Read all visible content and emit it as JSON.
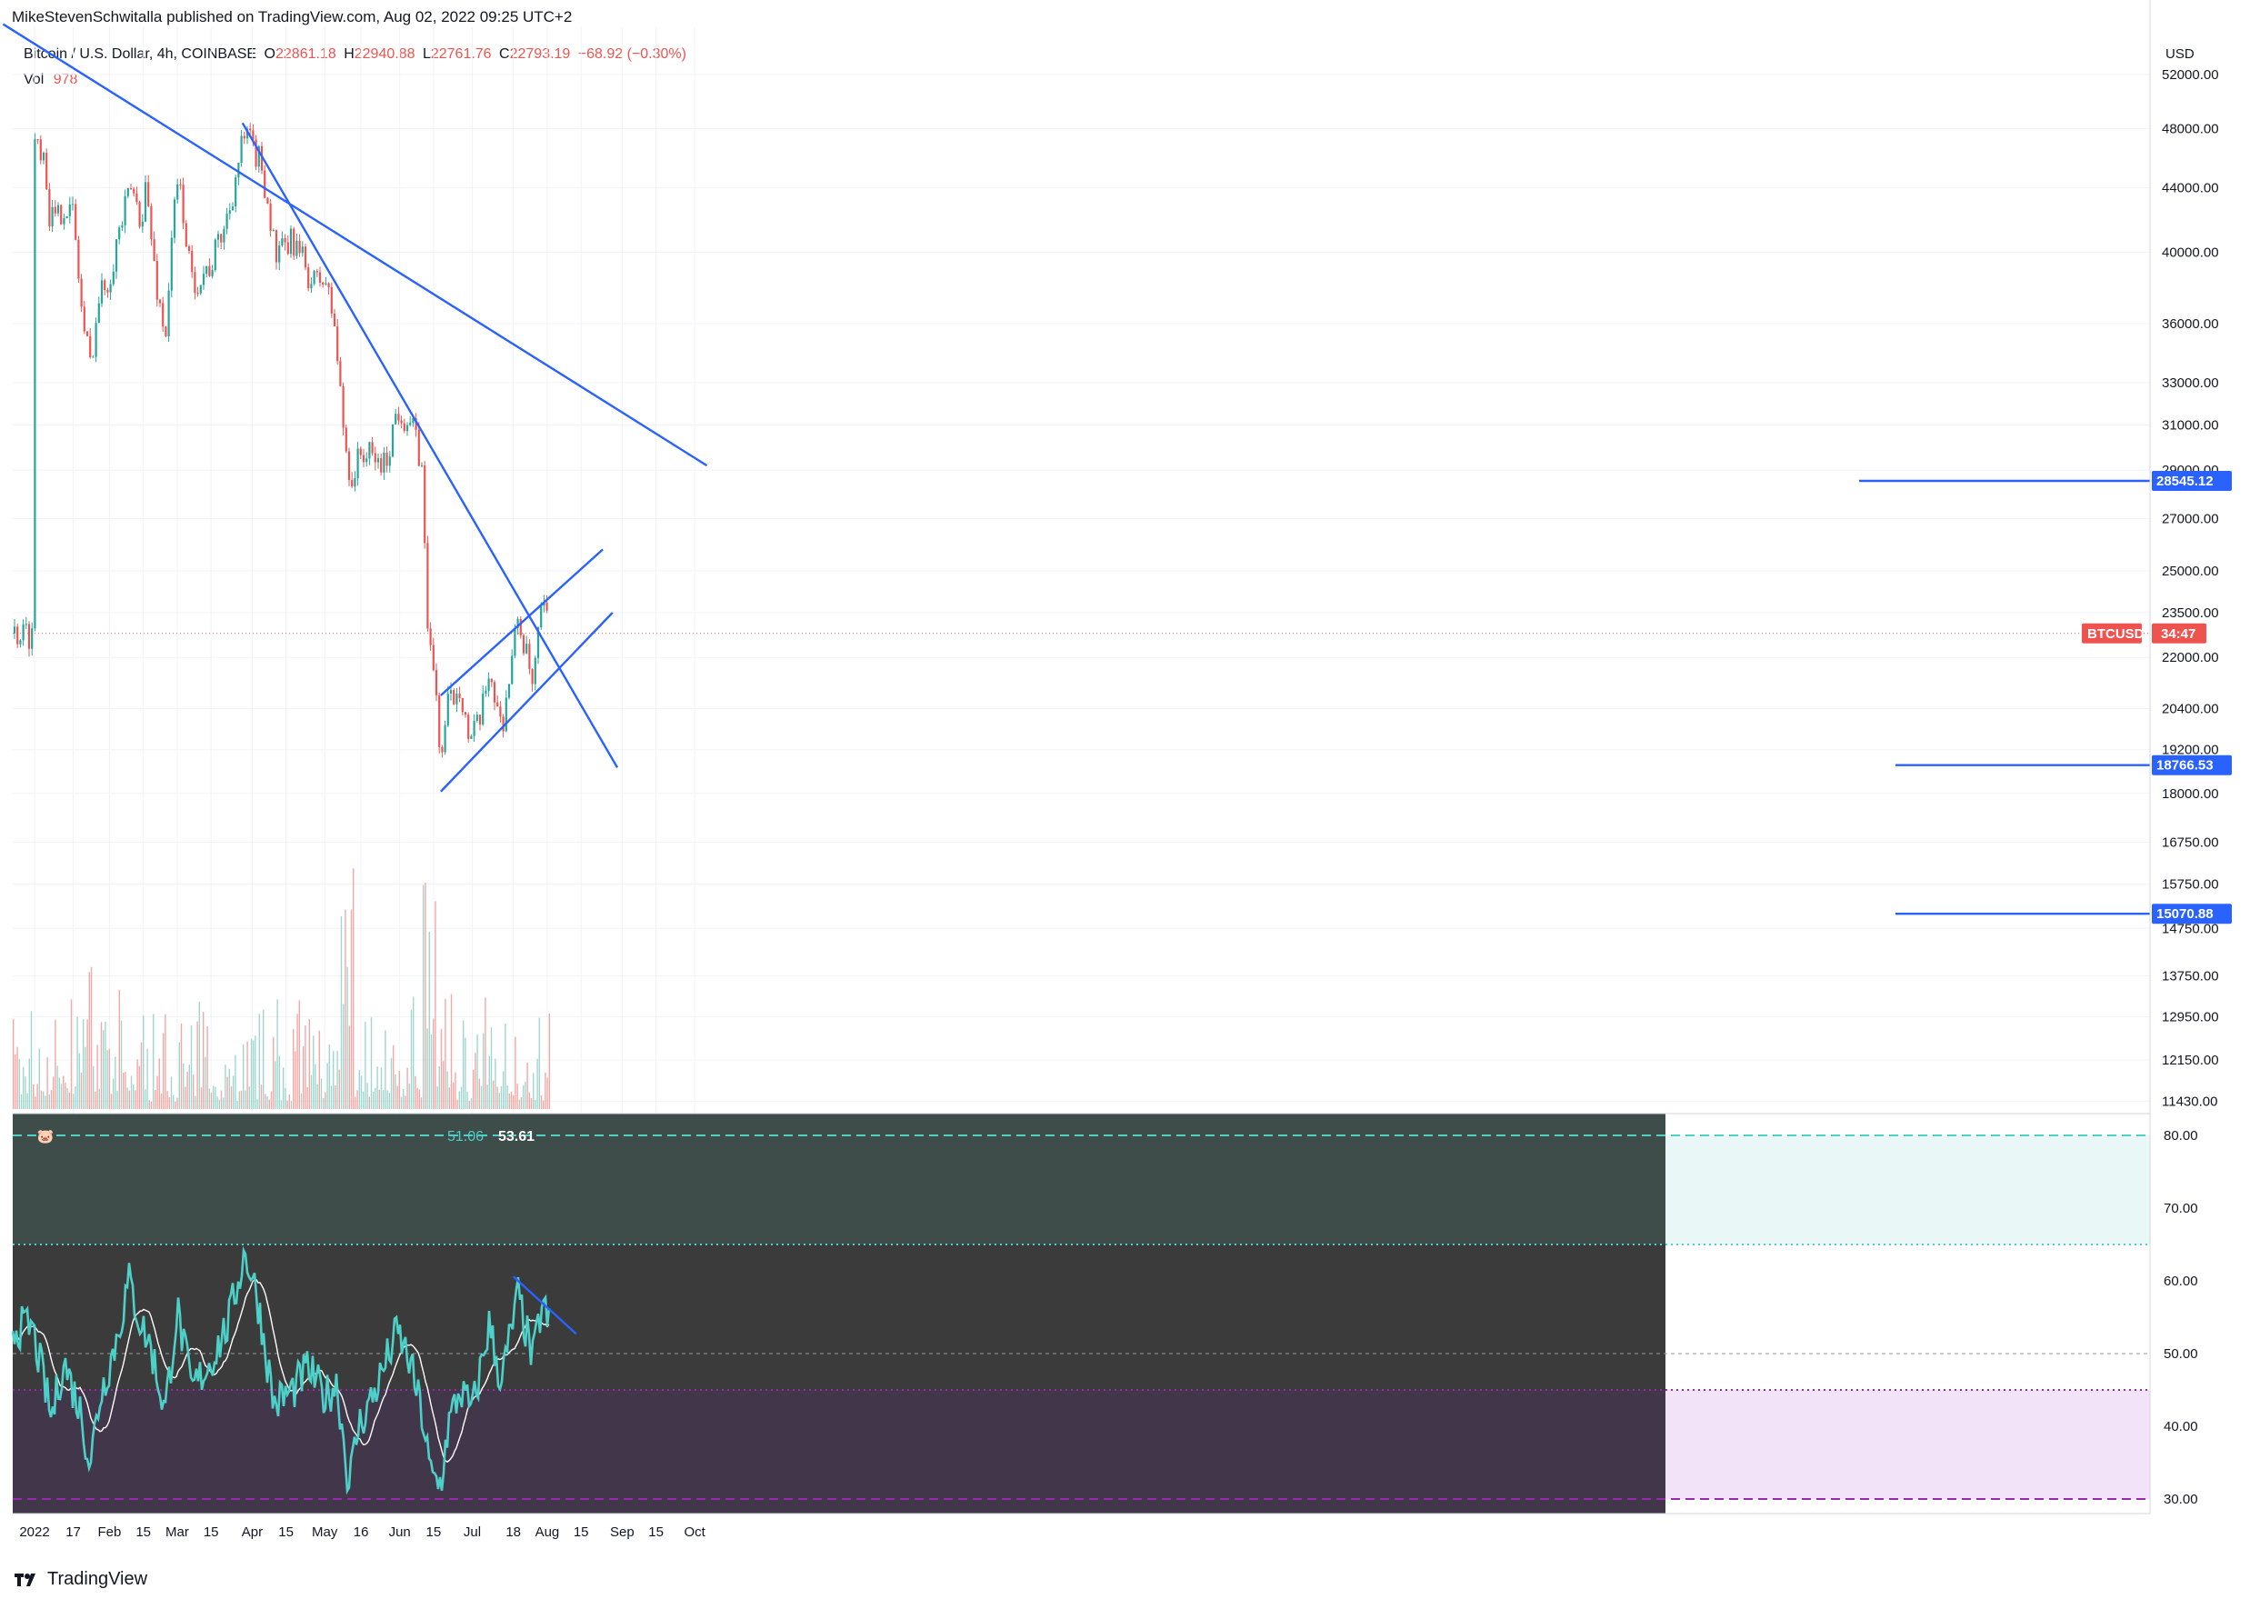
{
  "header": {
    "published": "MikeStevenSchwitalla published on TradingView.com, Aug 02, 2022 09:25 UTC+2"
  },
  "legend": {
    "symbol": "Bitcoin / U.S. Dollar, 4h, COINBASE",
    "o_label": "O",
    "o": "22861.18",
    "h_label": "H",
    "h": "22940.88",
    "l_label": "L",
    "l": "22761.76",
    "c_label": "C",
    "c": "22793.19",
    "chg": "−68.92 (−0.30%)",
    "vol_label": "Vol",
    "vol": "978"
  },
  "rsi_legend": {
    "icon": "pig-icon",
    "ma": "51.06",
    "rsi": "53.61"
  },
  "colors": {
    "trendline": "#2962ff",
    "up": "#26a69a",
    "down": "#ef5350",
    "rsi": "#4dd0c8",
    "rsi_ma": "#ffffff",
    "badge_blue": "#2962ff",
    "badge_red": "#ef5350"
  },
  "brand": {
    "name": "TradingView",
    "logo": "tradingview-logo"
  },
  "chart_data": [
    {
      "type": "candlestick",
      "title": "Bitcoin / U.S. Dollar, 4h, COINBASE",
      "currency": "USD",
      "y_scale": "log",
      "ylim": [
        11000,
        55000
      ],
      "y_ticks": [
        "52000.00",
        "48000.00",
        "44000.00",
        "40000.00",
        "36000.00",
        "33000.00",
        "31000.00",
        "29000.00",
        "27000.00",
        "25000.00",
        "23500.00",
        "22000.00",
        "20400.00",
        "19200.00",
        "18000.00",
        "16750.00",
        "15750.00",
        "14750.00",
        "13750.00",
        "12950.00",
        "12150.00",
        "11430.00"
      ],
      "x_ticks": [
        "2022",
        "17",
        "Feb",
        "15",
        "Mar",
        "15",
        "Apr",
        "15",
        "May",
        "16",
        "Jun",
        "15",
        "Jul",
        "18",
        "Aug",
        "15",
        "Sep",
        "15",
        "Oct"
      ],
      "price_path": [
        [
          "2022-01-01",
          47500
        ],
        [
          "2022-01-05",
          46500
        ],
        [
          "2022-01-07",
          42500
        ],
        [
          "2022-01-10",
          41800
        ],
        [
          "2022-01-13",
          43000
        ],
        [
          "2022-01-17",
          42300
        ],
        [
          "2022-01-21",
          36000
        ],
        [
          "2022-01-24",
          34000
        ],
        [
          "2022-01-28",
          37600
        ],
        [
          "2022-02-01",
          38600
        ],
        [
          "2022-02-04",
          40700
        ],
        [
          "2022-02-10",
          44000
        ],
        [
          "2022-02-14",
          42000
        ],
        [
          "2022-02-16",
          44200
        ],
        [
          "2022-02-20",
          38500
        ],
        [
          "2022-02-24",
          35200
        ],
        [
          "2022-02-28",
          43000
        ],
        [
          "2022-03-02",
          44300
        ],
        [
          "2022-03-07",
          38200
        ],
        [
          "2022-03-15",
          39200
        ],
        [
          "2022-03-22",
          42300
        ],
        [
          "2022-03-28",
          47000
        ],
        [
          "2022-03-30",
          47300
        ],
        [
          "2022-04-05",
          45500
        ],
        [
          "2022-04-11",
          39600
        ],
        [
          "2022-04-18",
          40700
        ],
        [
          "2022-04-26",
          38200
        ],
        [
          "2022-05-01",
          38500
        ],
        [
          "2022-05-05",
          36000
        ],
        [
          "2022-05-09",
          30500
        ],
        [
          "2022-05-12",
          28500
        ],
        [
          "2022-05-16",
          29800
        ],
        [
          "2022-05-26",
          29200
        ],
        [
          "2022-05-31",
          31800
        ],
        [
          "2022-06-06",
          31000
        ],
        [
          "2022-06-10",
          29200
        ],
        [
          "2022-06-13",
          22500
        ],
        [
          "2022-06-16",
          21000
        ],
        [
          "2022-06-18",
          18800
        ],
        [
          "2022-06-21",
          20500
        ],
        [
          "2022-06-26",
          21200
        ],
        [
          "2022-06-30",
          19300
        ],
        [
          "2022-07-05",
          20200
        ],
        [
          "2022-07-08",
          21700
        ],
        [
          "2022-07-13",
          19800
        ],
        [
          "2022-07-18",
          22200
        ],
        [
          "2022-07-20",
          23400
        ],
        [
          "2022-07-26",
          21000
        ],
        [
          "2022-07-30",
          23800
        ],
        [
          "2022-08-02",
          22793
        ]
      ],
      "trendlines": [
        {
          "name": "long-term-resistance",
          "points": [
            [
              "2021-12-19",
              56000
            ],
            [
              "2022-10-06",
              29200
            ]
          ]
        },
        {
          "name": "mid-term-resistance",
          "points": [
            [
              "2022-03-28",
              48400
            ],
            [
              "2022-08-30",
              18700
            ]
          ]
        },
        {
          "name": "channel-upper",
          "points": [
            [
              "2022-06-18",
              20800
            ],
            [
              "2022-08-24",
              25800
            ]
          ]
        },
        {
          "name": "channel-lower",
          "points": [
            [
              "2022-06-18",
              18050
            ],
            [
              "2022-08-28",
              23500
            ]
          ]
        }
      ],
      "levels": [
        {
          "value": 28545.12,
          "label": "28545.12"
        },
        {
          "value": 18766.53,
          "label": "18766.53"
        },
        {
          "value": 15070.88,
          "label": "15070.88"
        }
      ],
      "current_price_tag": {
        "symbol": "BTCUSD",
        "countdown": "34:47",
        "value": 22793.19
      }
    },
    {
      "type": "line",
      "name": "RSI",
      "ylim": [
        28,
        83
      ],
      "y_ticks": [
        "80.00",
        "70.00",
        "60.00",
        "50.00",
        "40.00",
        "30.00"
      ],
      "bands": {
        "outer_upper": 80,
        "inner_upper": 65,
        "mid": 50,
        "inner_lower": 45,
        "outer_lower": 30
      },
      "rsi_path": [
        [
          "2022-01-01",
          52
        ],
        [
          "2022-01-05",
          46
        ],
        [
          "2022-01-08",
          41
        ],
        [
          "2022-01-13",
          49
        ],
        [
          "2022-01-20",
          42
        ],
        [
          "2022-01-24",
          35
        ],
        [
          "2022-01-28",
          44
        ],
        [
          "2022-02-04",
          52
        ],
        [
          "2022-02-09",
          60
        ],
        [
          "2022-02-14",
          54
        ],
        [
          "2022-02-18",
          51
        ],
        [
          "2022-02-24",
          42
        ],
        [
          "2022-03-01",
          56
        ],
        [
          "2022-03-07",
          45
        ],
        [
          "2022-03-15",
          49
        ],
        [
          "2022-03-22",
          54
        ],
        [
          "2022-03-29",
          64
        ],
        [
          "2022-04-03",
          58
        ],
        [
          "2022-04-10",
          43
        ],
        [
          "2022-04-18",
          45
        ],
        [
          "2022-04-24",
          48
        ],
        [
          "2022-05-01",
          44
        ],
        [
          "2022-05-06",
          46
        ],
        [
          "2022-05-11",
          32
        ],
        [
          "2022-05-15",
          40
        ],
        [
          "2022-05-22",
          45
        ],
        [
          "2022-05-31",
          53
        ],
        [
          "2022-06-05",
          49
        ],
        [
          "2022-06-10",
          42
        ],
        [
          "2022-06-14",
          33
        ],
        [
          "2022-06-18",
          32
        ],
        [
          "2022-06-21",
          40
        ],
        [
          "2022-06-26",
          45
        ],
        [
          "2022-07-01",
          42
        ],
        [
          "2022-07-08",
          54
        ],
        [
          "2022-07-13",
          46
        ],
        [
          "2022-07-20",
          58
        ],
        [
          "2022-07-26",
          49
        ],
        [
          "2022-07-30",
          57
        ],
        [
          "2022-08-02",
          53.6
        ]
      ],
      "trendline": {
        "name": "rsi-divergence",
        "points": [
          [
            "2022-07-18",
            60.6
          ],
          [
            "2022-08-13",
            52.7
          ]
        ]
      },
      "ma_value": 51.06,
      "rsi_value": 53.61
    }
  ]
}
